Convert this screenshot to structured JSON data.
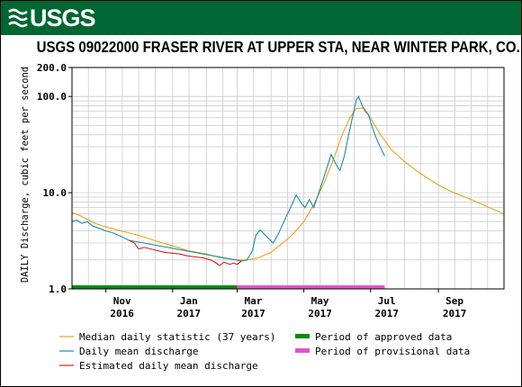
{
  "header": {
    "logo_text": "USGS"
  },
  "chart_data": {
    "type": "line",
    "title": "USGS 09022000 FRASER RIVER AT UPPER STA, NEAR WINTER PARK, CO.",
    "ylabel": "DAILY Discharge, cubic feet per second",
    "yscale": "log",
    "ylim": [
      1.0,
      200.0
    ],
    "y_ticks": [
      {
        "value": 1.0,
        "label": "1.0"
      },
      {
        "value": 10.0,
        "label": "10.0"
      },
      {
        "value": 100.0,
        "label": "100.0"
      },
      {
        "value": 200.0,
        "label": "200.0"
      }
    ],
    "xlim": [
      "2016-10-01",
      "2017-10-31"
    ],
    "x_ticks": [
      {
        "date": "2016-11-01",
        "label": "Nov",
        "year": "2016"
      },
      {
        "date": "2017-01-01",
        "label": "Jan",
        "year": "2017"
      },
      {
        "date": "2017-03-01",
        "label": "Mar",
        "year": "2017"
      },
      {
        "date": "2017-05-01",
        "label": "May",
        "year": "2017"
      },
      {
        "date": "2017-07-01",
        "label": "Jul",
        "year": "2017"
      },
      {
        "date": "2017-09-01",
        "label": "Sep",
        "year": "2017"
      }
    ],
    "grid": true,
    "series": [
      {
        "name": "Median daily statistic (37 years)",
        "color": "#e8a317",
        "points": [
          [
            "2016-10-01",
            6.2
          ],
          [
            "2016-10-08",
            5.8
          ],
          [
            "2016-10-15",
            5.3
          ],
          [
            "2016-10-22",
            4.8
          ],
          [
            "2016-11-01",
            4.4
          ],
          [
            "2016-11-15",
            4.0
          ],
          [
            "2016-12-01",
            3.6
          ],
          [
            "2016-12-15",
            3.2
          ],
          [
            "2017-01-01",
            2.8
          ],
          [
            "2017-01-15",
            2.5
          ],
          [
            "2017-02-01",
            2.3
          ],
          [
            "2017-02-15",
            2.1
          ],
          [
            "2017-03-01",
            2.0
          ],
          [
            "2017-03-10",
            2.0
          ],
          [
            "2017-03-20",
            2.1
          ],
          [
            "2017-04-01",
            2.4
          ],
          [
            "2017-04-10",
            2.9
          ],
          [
            "2017-04-20",
            3.6
          ],
          [
            "2017-05-01",
            5.0
          ],
          [
            "2017-05-10",
            7.5
          ],
          [
            "2017-05-20",
            13.0
          ],
          [
            "2017-05-28",
            22.0
          ],
          [
            "2017-06-05",
            40.0
          ],
          [
            "2017-06-12",
            60.0
          ],
          [
            "2017-06-18",
            75.0
          ],
          [
            "2017-06-25",
            76.0
          ],
          [
            "2017-07-01",
            60.0
          ],
          [
            "2017-07-10",
            40.0
          ],
          [
            "2017-07-20",
            28.0
          ],
          [
            "2017-08-01",
            21.0
          ],
          [
            "2017-08-15",
            16.0
          ],
          [
            "2017-09-01",
            12.0
          ],
          [
            "2017-09-15",
            10.0
          ],
          [
            "2017-10-01",
            8.5
          ],
          [
            "2017-10-15",
            7.2
          ],
          [
            "2017-10-31",
            6.0
          ]
        ]
      },
      {
        "name": "Daily mean discharge",
        "color": "#1a8ca3",
        "points": [
          [
            "2016-10-01",
            5.0
          ],
          [
            "2016-10-05",
            5.2
          ],
          [
            "2016-10-10",
            4.8
          ],
          [
            "2016-10-15",
            5.0
          ],
          [
            "2016-10-20",
            4.5
          ],
          [
            "2016-10-25",
            4.3
          ],
          [
            "2016-11-01",
            4.0
          ],
          [
            "2016-11-08",
            3.8
          ],
          [
            "2016-11-15",
            3.5
          ],
          [
            "2016-11-22",
            3.2
          ],
          [
            "2017-03-05",
            1.95
          ],
          [
            "2017-03-10",
            2.0
          ],
          [
            "2017-03-15",
            2.5
          ],
          [
            "2017-03-18",
            3.6
          ],
          [
            "2017-03-22",
            4.1
          ],
          [
            "2017-03-28",
            3.5
          ],
          [
            "2017-04-03",
            3.0
          ],
          [
            "2017-04-08",
            3.8
          ],
          [
            "2017-04-12",
            4.8
          ],
          [
            "2017-04-16",
            6.0
          ],
          [
            "2017-04-20",
            7.5
          ],
          [
            "2017-04-24",
            9.5
          ],
          [
            "2017-04-28",
            8.0
          ],
          [
            "2017-05-02",
            7.0
          ],
          [
            "2017-05-06",
            8.5
          ],
          [
            "2017-05-10",
            7.0
          ],
          [
            "2017-05-14",
            9.5
          ],
          [
            "2017-05-18",
            13.0
          ],
          [
            "2017-05-22",
            18.0
          ],
          [
            "2017-05-26",
            25.0
          ],
          [
            "2017-05-30",
            20.0
          ],
          [
            "2017-06-03",
            17.0
          ],
          [
            "2017-06-07",
            24.0
          ],
          [
            "2017-06-11",
            40.0
          ],
          [
            "2017-06-15",
            65.0
          ],
          [
            "2017-06-18",
            92.0
          ],
          [
            "2017-06-20",
            100.0
          ],
          [
            "2017-06-23",
            82.0
          ],
          [
            "2017-06-26",
            70.0
          ],
          [
            "2017-06-29",
            65.0
          ],
          [
            "2017-07-02",
            50.0
          ],
          [
            "2017-07-05",
            40.0
          ],
          [
            "2017-07-08",
            33.0
          ],
          [
            "2017-07-11",
            28.0
          ],
          [
            "2017-07-14",
            24.0
          ]
        ]
      },
      {
        "name": "Estimated daily mean discharge",
        "color": "#cc2222",
        "points": [
          [
            "2016-11-22",
            3.2
          ],
          [
            "2016-11-27",
            3.0
          ],
          [
            "2016-12-01",
            2.6
          ],
          [
            "2016-12-06",
            2.7
          ],
          [
            "2016-12-12",
            2.6
          ],
          [
            "2016-12-18",
            2.5
          ],
          [
            "2016-12-25",
            2.4
          ],
          [
            "2017-01-01",
            2.35
          ],
          [
            "2017-01-08",
            2.3
          ],
          [
            "2017-01-15",
            2.2
          ],
          [
            "2017-01-22",
            2.15
          ],
          [
            "2017-01-29",
            2.1
          ],
          [
            "2017-02-05",
            2.0
          ],
          [
            "2017-02-10",
            1.85
          ],
          [
            "2017-02-13",
            1.75
          ],
          [
            "2017-02-17",
            1.9
          ],
          [
            "2017-02-22",
            1.8
          ],
          [
            "2017-02-26",
            1.85
          ],
          [
            "2017-03-01",
            1.8
          ],
          [
            "2017-03-05",
            1.95
          ]
        ]
      }
    ],
    "periods": [
      {
        "name": "Period of approved data",
        "color": "#0a8a0a",
        "start": "2016-10-01",
        "end": "2017-03-01"
      },
      {
        "name": "Period of provisional data",
        "color": "#e055c8",
        "start": "2017-03-01",
        "end": "2017-07-14"
      }
    ],
    "legend": [
      {
        "label": "Median daily statistic (37 years)",
        "kind": "line",
        "color": "#e8a317"
      },
      {
        "label": "Period of approved data",
        "kind": "bar",
        "color": "#0a8a0a"
      },
      {
        "label": "Daily mean discharge",
        "kind": "line",
        "color": "#1a8ca3"
      },
      {
        "label": "Period of provisional data",
        "kind": "bar",
        "color": "#e055c8"
      },
      {
        "label": "Estimated daily mean discharge",
        "kind": "line",
        "color": "#cc2222"
      }
    ]
  }
}
